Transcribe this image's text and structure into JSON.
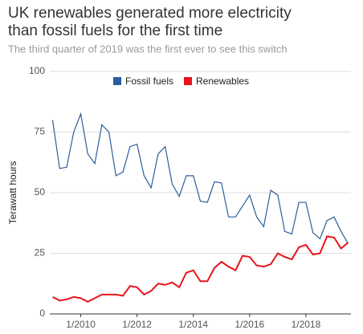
{
  "chart_data": {
    "type": "line",
    "title": "UK renewables generated more electricity than fossil fuels for the first time",
    "subtitle": "The third quarter of 2019 was the first ever to see this switch",
    "y_label": "Terawatt hours",
    "x": [
      2009.0,
      2009.25,
      2009.5,
      2009.75,
      2010.0,
      2010.25,
      2010.5,
      2010.75,
      2011.0,
      2011.25,
      2011.5,
      2011.75,
      2012.0,
      2012.25,
      2012.5,
      2012.75,
      2013.0,
      2013.25,
      2013.5,
      2013.75,
      2014.0,
      2014.25,
      2014.5,
      2014.75,
      2015.0,
      2015.25,
      2015.5,
      2015.75,
      2016.0,
      2016.25,
      2016.5,
      2016.75,
      2017.0,
      2017.25,
      2017.5,
      2017.75,
      2018.0,
      2018.25,
      2018.5,
      2018.75,
      2019.0,
      2019.25,
      2019.5
    ],
    "series": [
      {
        "name": "Fossil fuels",
        "color": "#2b5d9b",
        "values": [
          80,
          60,
          60.5,
          75,
          82.5,
          66,
          62,
          78,
          75,
          57,
          58.5,
          69,
          70,
          57,
          52,
          66,
          69,
          53.5,
          48.5,
          57,
          57,
          46.5,
          46,
          54.5,
          54,
          40,
          40,
          44.5,
          49,
          40,
          36,
          51,
          49,
          34,
          33,
          46,
          46,
          33.5,
          31,
          38.5,
          40,
          34,
          29
        ]
      },
      {
        "name": "Renewables",
        "color": "#e8141b",
        "values": [
          7,
          5.5,
          6,
          7,
          6.5,
          5,
          6.5,
          8,
          8,
          8,
          7.5,
          11.5,
          11,
          8,
          9.5,
          12.5,
          12,
          13,
          11,
          17,
          18,
          13.5,
          13.5,
          19,
          21.5,
          19.5,
          18,
          24,
          23.5,
          20,
          19.5,
          20.5,
          25,
          23.5,
          22.5,
          27.5,
          28.5,
          24.5,
          25,
          32,
          31.5,
          27,
          29.5
        ]
      }
    ],
    "xlim": [
      2008.9,
      2019.6
    ],
    "xticks": [
      {
        "value": 2010,
        "label": "1/2010"
      },
      {
        "value": 2012,
        "label": "1/2012"
      },
      {
        "value": 2014,
        "label": "1/2014"
      },
      {
        "value": 2016,
        "label": "1/2016"
      },
      {
        "value": 2018,
        "label": "1/2018"
      }
    ],
    "ylim": [
      0,
      100
    ],
    "yticks": [
      0,
      25,
      50,
      75,
      100
    ],
    "grid": true,
    "legend": "top"
  }
}
